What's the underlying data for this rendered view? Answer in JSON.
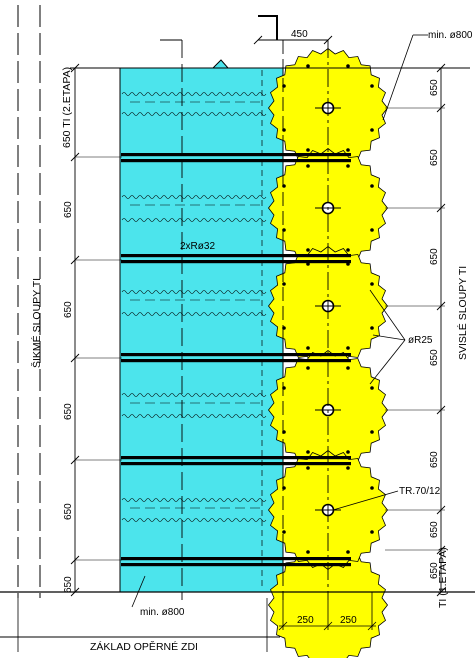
{
  "labels": {
    "top_dimension": "450",
    "min_diameter_top": "min. ø800",
    "min_diameter_bottom": "min. ø800",
    "rebar_pair": "2xRø32",
    "rebar_r25": "øR25",
    "tube": "TR.70/12",
    "oblique_columns": "ŠIKMÉ SLOUPY TI",
    "vertical_columns": "SVISLÉ SLOUPY TI",
    "stage_top": "650 TI (2.ETAPA)",
    "stage_bottom": "TI (1.ETAPA)",
    "footing": "ZÁKLAD OPĚRNÉ ZDI",
    "dim_250_left": "250",
    "dim_250_right": "250"
  },
  "left_dimensions": [
    "650",
    "650",
    "650",
    "650",
    "650",
    "650"
  ],
  "right_dimensions": [
    "650",
    "650",
    "650",
    "650",
    "650",
    "650",
    "650"
  ],
  "colors": {
    "cyan_fill": "#4ce4ec",
    "yellow_fill": "#ffff00",
    "line": "#000000",
    "background": "#ffffff"
  }
}
